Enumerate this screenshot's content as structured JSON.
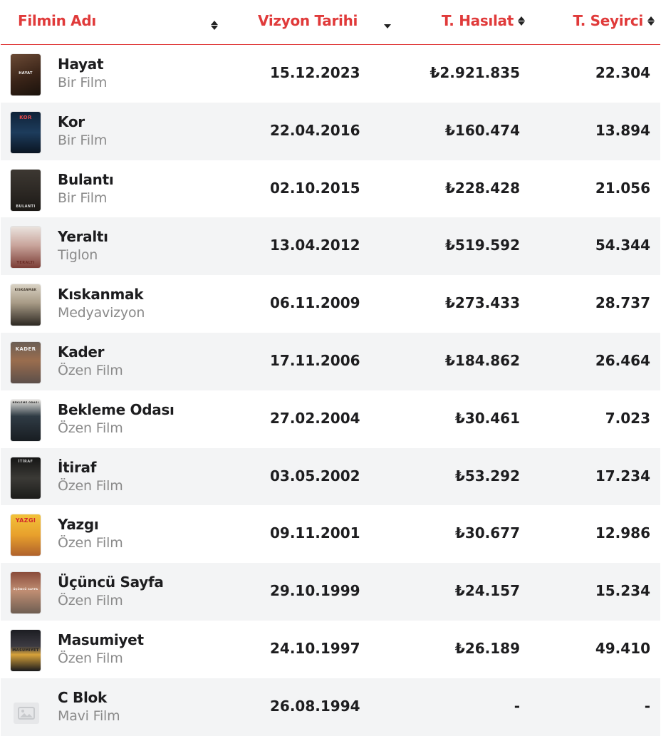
{
  "header": {
    "name": "Filmin Adı",
    "date": "Vizyon Tarihi",
    "gross": "T. Hasılat",
    "audience": "T. Seyirci"
  },
  "colors": {
    "accent": "#e03a3a",
    "row_alt": "#f3f4f5",
    "text": "#1d1d1f",
    "subtext": "#8a8a8a"
  },
  "films": [
    {
      "title": "Hayat",
      "distributor": "Bir Film",
      "date": "15.12.2023",
      "gross": "₺2.921.835",
      "audience": "22.304",
      "poster_text": "HAYAT"
    },
    {
      "title": "Kor",
      "distributor": "Bir Film",
      "date": "22.04.2016",
      "gross": "₺160.474",
      "audience": "13.894",
      "poster_text": "KOR"
    },
    {
      "title": "Bulantı",
      "distributor": "Bir Film",
      "date": "02.10.2015",
      "gross": "₺228.428",
      "audience": "21.056",
      "poster_text": "BULANTI"
    },
    {
      "title": "Yeraltı",
      "distributor": "Tiglon",
      "date": "13.04.2012",
      "gross": "₺519.592",
      "audience": "54.344",
      "poster_text": "YERALTI"
    },
    {
      "title": "Kıskanmak",
      "distributor": "Medyavizyon",
      "date": "06.11.2009",
      "gross": "₺273.433",
      "audience": "28.737",
      "poster_text": "KISKANMAK"
    },
    {
      "title": "Kader",
      "distributor": "Özen Film",
      "date": "17.11.2006",
      "gross": "₺184.862",
      "audience": "26.464",
      "poster_text": "KADER"
    },
    {
      "title": "Bekleme Odası",
      "distributor": "Özen Film",
      "date": "27.02.2004",
      "gross": "₺30.461",
      "audience": "7.023",
      "poster_text": "BEKLEME ODASI"
    },
    {
      "title": "İtiraf",
      "distributor": "Özen Film",
      "date": "03.05.2002",
      "gross": "₺53.292",
      "audience": "17.234",
      "poster_text": "İTİRAF"
    },
    {
      "title": "Yazgı",
      "distributor": "Özen Film",
      "date": "09.11.2001",
      "gross": "₺30.677",
      "audience": "12.986",
      "poster_text": "YAZGI"
    },
    {
      "title": "Üçüncü Sayfa",
      "distributor": "Özen Film",
      "date": "29.10.1999",
      "gross": "₺24.157",
      "audience": "15.234",
      "poster_text": "ÜÇÜNCÜ SAYFA"
    },
    {
      "title": "Masumiyet",
      "distributor": "Özen Film",
      "date": "24.10.1997",
      "gross": "₺26.189",
      "audience": "49.410",
      "poster_text": "MASUMIYET"
    },
    {
      "title": "C Blok",
      "distributor": "Mavi Film",
      "date": "26.08.1994",
      "gross": "-",
      "audience": "-",
      "poster_text": ""
    }
  ]
}
